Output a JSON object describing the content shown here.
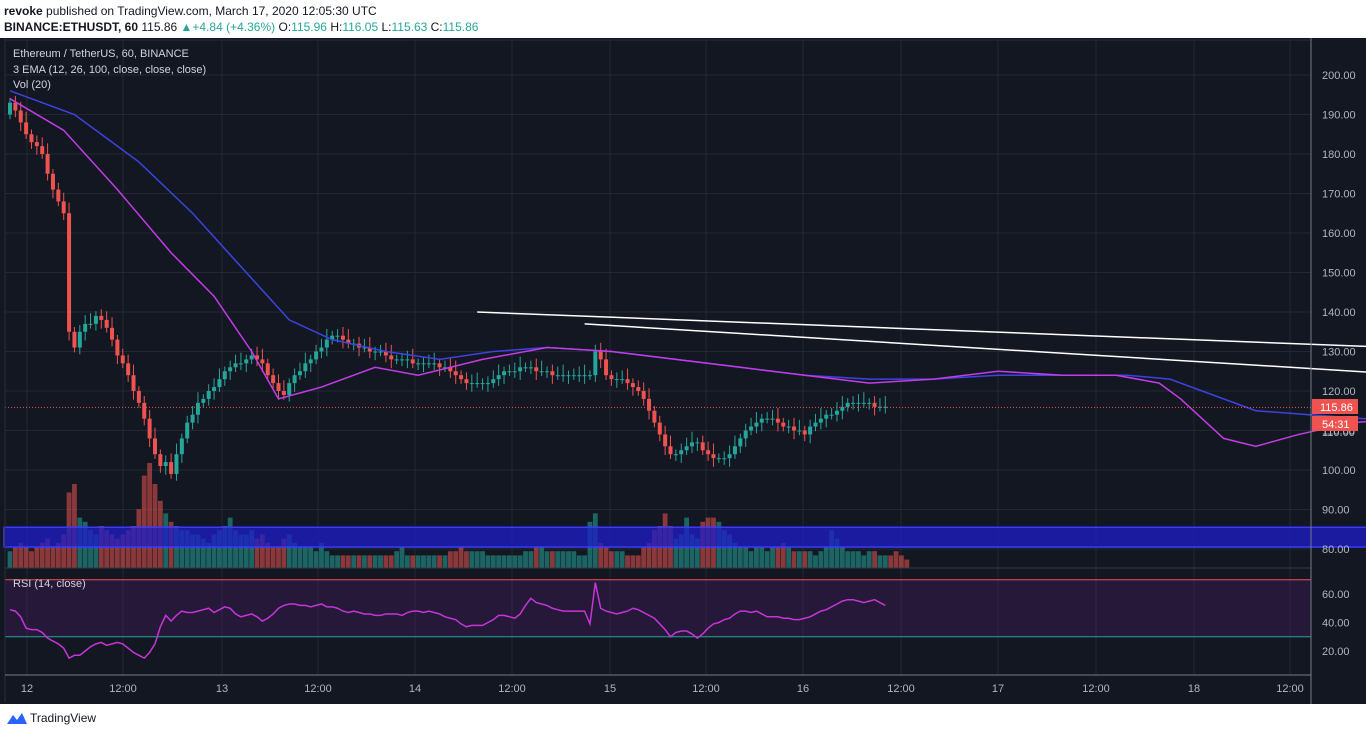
{
  "header": {
    "publisher": "revoke",
    "published_text": "published on TradingView.com, March 17, 2020 12:05:30 UTC",
    "symbol_line": "BINANCE:ETHUSDT, 60",
    "last": "115.86",
    "change": "+4.84 (+4.36%)",
    "o_label": "O:",
    "o": "115.96",
    "h_label": "H:",
    "h": "116.05",
    "l_label": "L:",
    "l": "115.63",
    "c_label": "C:",
    "c": "115.86"
  },
  "legend": {
    "title": "Ethereum / TetherUS, 60, BINANCE",
    "ema": "3 EMA (12, 26, 100, close, close, close)",
    "vol": "Vol (20)",
    "rsi": "RSI (14, close)"
  },
  "price_tags": {
    "price": "115.86",
    "countdown": "54:31",
    "hidden": "110.00"
  },
  "footer": {
    "brand": "TradingView"
  },
  "colors": {
    "bull": "#26a69a",
    "bear": "#ef5350",
    "ema_fast": "#c33ce8",
    "ema_slow": "#3d43e0",
    "rsi": "#c735d8",
    "zone": "#1e1ec8"
  },
  "chart_data": [
    {
      "type": "candlestick",
      "title": "Ethereum / TetherUS, 60, BINANCE",
      "y_ticks": [
        80,
        90,
        100,
        110,
        120,
        130,
        140,
        150,
        160,
        170,
        180,
        190,
        200
      ],
      "x_ticks": [
        "12",
        "12:00",
        "13",
        "12:00",
        "14",
        "12:00",
        "15",
        "12:00",
        "16",
        "12:00",
        "17",
        "12:00",
        "18",
        "12:00"
      ],
      "ylim": [
        75,
        205
      ],
      "last_price": 115.86,
      "close_series_hourly": [
        193,
        191,
        188,
        185,
        183,
        182,
        180,
        175,
        171,
        168,
        165,
        135,
        131,
        135,
        137,
        137,
        139,
        138,
        136,
        133,
        129,
        127,
        124,
        120,
        117,
        113,
        108,
        104,
        101,
        102,
        99,
        104,
        108,
        112,
        114,
        117,
        118,
        120,
        121,
        123,
        125,
        126,
        127,
        127,
        128,
        129,
        128,
        127,
        124,
        122,
        120,
        119,
        122,
        124,
        125,
        127,
        128,
        130,
        131,
        133,
        134,
        134,
        133,
        132,
        132,
        131,
        131,
        130,
        130,
        130,
        129,
        128,
        128,
        128,
        128,
        127,
        127,
        127,
        127,
        127,
        126,
        126,
        125,
        124,
        123,
        122,
        122,
        122,
        122,
        122,
        123,
        124,
        125,
        125,
        125,
        126,
        126,
        126,
        125,
        125,
        125,
        124,
        124,
        124,
        124,
        124,
        124,
        124,
        124,
        130,
        128,
        124,
        123,
        123,
        123,
        122,
        121,
        120,
        118,
        115,
        112,
        109,
        106,
        104,
        104,
        105,
        106,
        107,
        107,
        105,
        104,
        103,
        103,
        103,
        104,
        106,
        108,
        110,
        111,
        112,
        113,
        113,
        113,
        112,
        111,
        111,
        110,
        110,
        109,
        111,
        112,
        113,
        114,
        114,
        115,
        116,
        117,
        117,
        117,
        117,
        117,
        116,
        116,
        116
      ],
      "ema_fast_points": [
        [
          0,
          194
        ],
        [
          10,
          186
        ],
        [
          20,
          171
        ],
        [
          30,
          155
        ],
        [
          38,
          144
        ],
        [
          45,
          130
        ],
        [
          50,
          118
        ],
        [
          58,
          121
        ],
        [
          68,
          126
        ],
        [
          76,
          124
        ],
        [
          88,
          128
        ],
        [
          100,
          131
        ],
        [
          112,
          130
        ],
        [
          124,
          128
        ],
        [
          136,
          126
        ],
        [
          148,
          124
        ],
        [
          160,
          122
        ],
        [
          172,
          123
        ],
        [
          184,
          125
        ],
        [
          196,
          124
        ],
        [
          206,
          124
        ],
        [
          214,
          122
        ],
        [
          218,
          118
        ],
        [
          226,
          108
        ],
        [
          232,
          106
        ],
        [
          240,
          109
        ],
        [
          250,
          112
        ],
        [
          260,
          113
        ],
        [
          270,
          111
        ],
        [
          282,
          115
        ],
        [
          292,
          117
        ],
        [
          302,
          116
        ]
      ],
      "ema_slow_points": [
        [
          0,
          196
        ],
        [
          12,
          190
        ],
        [
          24,
          178
        ],
        [
          34,
          165
        ],
        [
          44,
          150
        ],
        [
          52,
          138
        ],
        [
          60,
          133
        ],
        [
          70,
          130
        ],
        [
          80,
          128
        ],
        [
          90,
          130
        ],
        [
          100,
          131
        ],
        [
          112,
          130
        ],
        [
          124,
          128
        ],
        [
          136,
          126
        ],
        [
          148,
          124
        ],
        [
          160,
          123
        ],
        [
          172,
          123
        ],
        [
          184,
          124
        ],
        [
          196,
          124
        ],
        [
          208,
          124
        ],
        [
          216,
          123
        ],
        [
          222,
          120
        ],
        [
          232,
          115
        ],
        [
          242,
          114
        ],
        [
          252,
          113
        ],
        [
          262,
          113
        ],
        [
          272,
          113
        ],
        [
          282,
          114
        ],
        [
          292,
          116
        ],
        [
          302,
          117
        ]
      ],
      "trendlines": [
        {
          "from": [
            87,
            140
          ],
          "to": [
            315,
            128
          ]
        },
        {
          "from": [
            107,
            137
          ],
          "to": [
            322,
            119
          ]
        }
      ],
      "zone": {
        "from_x": 0,
        "to_x": 330,
        "y_low": 80.5,
        "y_high": 85.5
      }
    },
    {
      "type": "bar",
      "title": "Vol (20)",
      "values": [
        4,
        5,
        6,
        5,
        4,
        5,
        6,
        7,
        5,
        6,
        8,
        18,
        20,
        12,
        11,
        9,
        8,
        10,
        9,
        8,
        7,
        8,
        9,
        10,
        14,
        22,
        25,
        20,
        16,
        13,
        11,
        10,
        9,
        9,
        8,
        8,
        7,
        6,
        8,
        9,
        10,
        12,
        9,
        8,
        8,
        9,
        7,
        8,
        6,
        5,
        5,
        7,
        8,
        6,
        5,
        5,
        5,
        4,
        6,
        4,
        3,
        3,
        3,
        3,
        3,
        3,
        3,
        3,
        3,
        3,
        3,
        3,
        4,
        5,
        3,
        3,
        3,
        3,
        3,
        3,
        3,
        3,
        4,
        4,
        5,
        4,
        4,
        4,
        4,
        3,
        3,
        3,
        3,
        3,
        3,
        3,
        4,
        4,
        5,
        5,
        4,
        4,
        4,
        4,
        4,
        4,
        3,
        3,
        11,
        13,
        6,
        5,
        4,
        4,
        4,
        3,
        3,
        3,
        5,
        6,
        9,
        10,
        13,
        10,
        7,
        8,
        12,
        8,
        7,
        11,
        12,
        12,
        11,
        9,
        8,
        6,
        5,
        5,
        4,
        5,
        5,
        4,
        5,
        5,
        6,
        5,
        4,
        4,
        4,
        4,
        3,
        4,
        5,
        9,
        7,
        5,
        4,
        4,
        4,
        3,
        4,
        4,
        3,
        3,
        3,
        4,
        3,
        2
      ]
    },
    {
      "type": "line",
      "title": "RSI (14, close)",
      "y_ticks": [
        20,
        40,
        60
      ],
      "ylim": [
        5,
        75
      ],
      "bands": [
        30,
        70
      ],
      "values": [
        49,
        48,
        44,
        36,
        35,
        35,
        33,
        29,
        27,
        25,
        22,
        15,
        17,
        17,
        20,
        23,
        25,
        26,
        24,
        25,
        26,
        25,
        22,
        19,
        17,
        15,
        19,
        25,
        37,
        45,
        41,
        45,
        48,
        47,
        47,
        48,
        49,
        50,
        47,
        49,
        51,
        50,
        46,
        44,
        45,
        46,
        44,
        41,
        43,
        46,
        50,
        52,
        53,
        53,
        52,
        52,
        51,
        52,
        53,
        51,
        51,
        50,
        48,
        47,
        48,
        47,
        46,
        46,
        45,
        45,
        46,
        46,
        46,
        45,
        47,
        48,
        48,
        47,
        48,
        47,
        46,
        44,
        43,
        42,
        39,
        37,
        38,
        38,
        38,
        40,
        42,
        45,
        45,
        44,
        43,
        46,
        52,
        57,
        54,
        53,
        52,
        50,
        49,
        48,
        48,
        48,
        48,
        48,
        39,
        68,
        50,
        48,
        47,
        46,
        47,
        48,
        50,
        49,
        47,
        45,
        43,
        39,
        35,
        30,
        33,
        34,
        34,
        32,
        29,
        32,
        36,
        39,
        40,
        42,
        43,
        46,
        48,
        48,
        47,
        48,
        46,
        44,
        44,
        44,
        43,
        43,
        42,
        42,
        43,
        44,
        46,
        48,
        49,
        51,
        53,
        55,
        56,
        56,
        55,
        54,
        55,
        56,
        54,
        52
      ]
    }
  ]
}
